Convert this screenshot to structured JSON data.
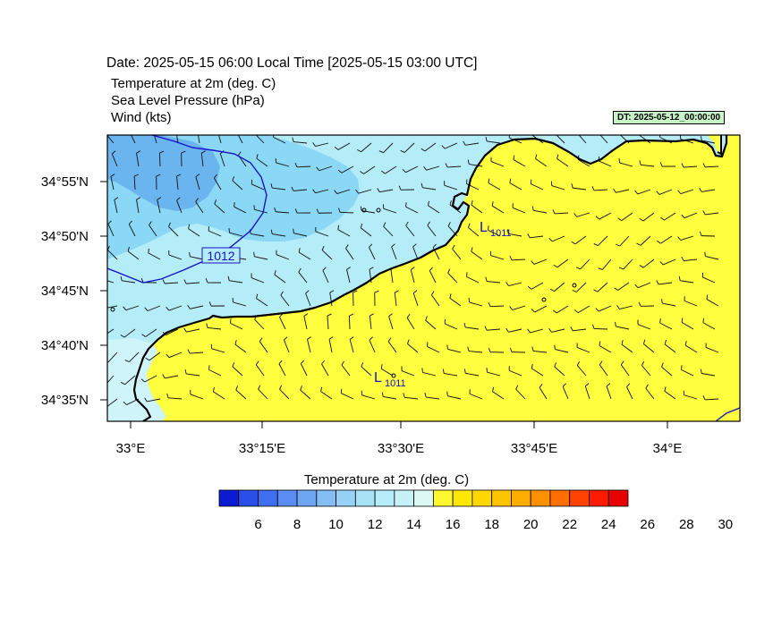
{
  "header": {
    "date_line": "Date: 2025-05-15  06:00 Local Time [2025-05-15  03:00 UTC]",
    "variables": [
      "Temperature at 2m   (deg. C)",
      "Sea Level Pressure   (hPa)",
      "Wind   (kts)"
    ],
    "dt_badge": "DT: 2025-05-12_00:00:00"
  },
  "map": {
    "lon_ticks": [
      "33°E",
      "33°15'E",
      "33°30'E",
      "33°45'E",
      "34°E"
    ],
    "lat_ticks": [
      "34°55'N",
      "34°50'N",
      "34°45'N",
      "34°40'N",
      "34°35'N"
    ],
    "isobar_label": "1012",
    "lows": [
      {
        "symbol": "L",
        "value": "1011"
      },
      {
        "symbol": "L",
        "value": "1011"
      }
    ],
    "colors": {
      "land": "#ffff40",
      "sea_light": "#b4ecf8",
      "sea_mid": "#8ad8f5",
      "sea_dark": "#6ab4f0",
      "isobar": "#1414c8",
      "coast": "#000000"
    }
  },
  "colorbar": {
    "title": "Temperature at 2m  (deg. C)",
    "labels": [
      "6",
      "8",
      "10",
      "12",
      "14",
      "16",
      "18",
      "20",
      "22",
      "24",
      "26",
      "28",
      "30"
    ],
    "colors": [
      "#0b1bd1",
      "#2a4fe8",
      "#3f6ff0",
      "#5a8cf3",
      "#6ea6f3",
      "#84bef4",
      "#97d2f6",
      "#a8e2f7",
      "#b6ecf8",
      "#c6f2f7",
      "#dcf8f4",
      "#fff830",
      "#ffe800",
      "#ffd700",
      "#ffc400",
      "#ffae00",
      "#ff9000",
      "#ff6e00",
      "#ff4200",
      "#ff1a00",
      "#e80000"
    ]
  }
}
